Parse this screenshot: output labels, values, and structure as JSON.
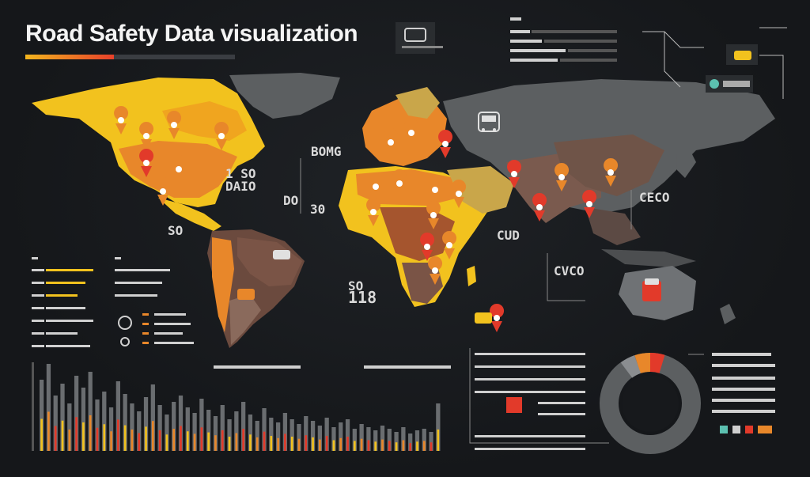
{
  "title": "Road Safety Data visualization",
  "map_labels": [
    {
      "id": "label-na-1",
      "text": "1 SO"
    },
    {
      "id": "label-na-2",
      "text": "DAIO"
    },
    {
      "id": "label-ca",
      "text": "DO"
    },
    {
      "id": "label-ca-2",
      "text": "30"
    },
    {
      "id": "label-sa",
      "text": "SO"
    },
    {
      "id": "label-eu",
      "text": "BOMG"
    },
    {
      "id": "label-africa",
      "text": "CUD"
    },
    {
      "id": "label-asia",
      "text": "CECO"
    },
    {
      "id": "label-sea",
      "text": "CVCO"
    },
    {
      "id": "label-south-atlantic",
      "text": "118"
    },
    {
      "id": "label-south-atlantic-top",
      "text": "SO"
    }
  ],
  "colors": {
    "yellow": "#f2c21e",
    "orange": "#e8872a",
    "red": "#e23a2a",
    "brown": "#6b4a3e",
    "gray": "#5c5f61",
    "panel_line": "#3a3d42"
  },
  "icons": [
    "map-pin-icon",
    "truck-icon",
    "bus-icon",
    "car-icon",
    "steering-wheel-icon"
  ]
}
